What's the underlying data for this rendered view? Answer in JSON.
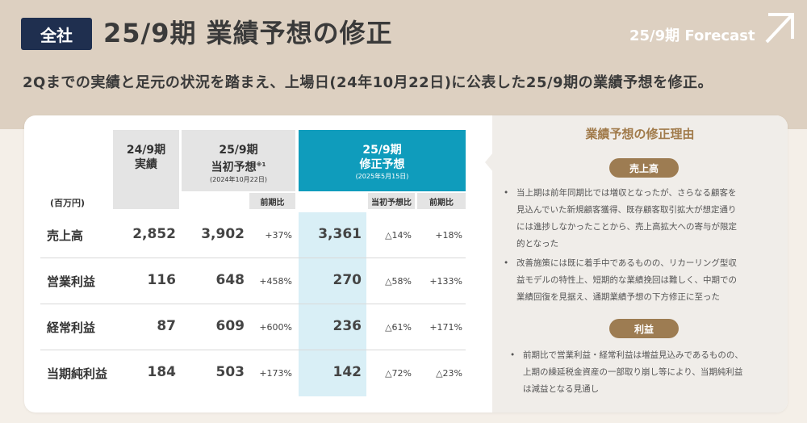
{
  "header": {
    "badge": "全社",
    "title": "25/9期 業績予想の修正",
    "forecast_label": "25/9期 Forecast",
    "subtitle": "2Qまでの実績と足元の状況を踏まえ、上場日(24年10月22日)に公表した25/9期の業績予想を修正。"
  },
  "table": {
    "unit": "(百万円)",
    "col_actual": {
      "line1": "24/9期",
      "line2": "実績"
    },
    "col_initial": {
      "line1": "25/9期",
      "line2": "当初予想",
      "note": "※1",
      "date": "(2024年10月22日)",
      "yoy": "前期比"
    },
    "col_revised": {
      "line1": "25/9期",
      "line2": "修正予想",
      "date": "(2025年5月15日)",
      "vs_initial": "当初予想比",
      "yoy": "前期比"
    },
    "rows": [
      {
        "label": "売上高",
        "actual": "2,852",
        "initial": "3,902",
        "initial_yoy": "+37%",
        "revised": "3,361",
        "vs_initial": "△14%",
        "revised_yoy": "+18%"
      },
      {
        "label": "営業利益",
        "actual": "116",
        "initial": "648",
        "initial_yoy": "+458%",
        "revised": "270",
        "vs_initial": "△58%",
        "revised_yoy": "+133%"
      },
      {
        "label": "経常利益",
        "actual": "87",
        "initial": "609",
        "initial_yoy": "+600%",
        "revised": "236",
        "vs_initial": "△61%",
        "revised_yoy": "+171%"
      },
      {
        "label": "当期純利益",
        "actual": "184",
        "initial": "503",
        "initial_yoy": "+173%",
        "revised": "142",
        "vs_initial": "△72%",
        "revised_yoy": "△23%"
      }
    ]
  },
  "reasons": {
    "title": "業績予想の修正理由",
    "sales_pill": "売上高",
    "sales_bullets": [
      [
        "当上期は前年同期比では増収となったが、さらなる顧客を",
        "見込んでいた新規顧客獲得、既存顧客取引拡大が想定通り",
        "には進捗しなかったことから、売上高拡大への寄与が限定",
        "的となった"
      ],
      [
        "改善施策には既に着手中であるものの、リカーリング型収",
        "益モデルの特性上、短期的な業績挽回は難しく、中期での",
        "業績回復を見据え、通期業績予想の下方修正に至った"
      ]
    ],
    "profit_pill": "利益",
    "profit_bullets": [
      [
        "前期比で営業利益・経常利益は増益見込みであるものの、",
        "上期の繰延税金資産の一部取り崩し等により、当期純利益",
        "は減益となる見通し"
      ]
    ],
    "bullet_mark": "•"
  },
  "colors": {
    "navy": "#1f2f4f",
    "accent_blue": "#0f9cbc",
    "light_blue": "#d9eff6",
    "brown": "#9d7c52",
    "gold_text": "#a17b4b"
  }
}
